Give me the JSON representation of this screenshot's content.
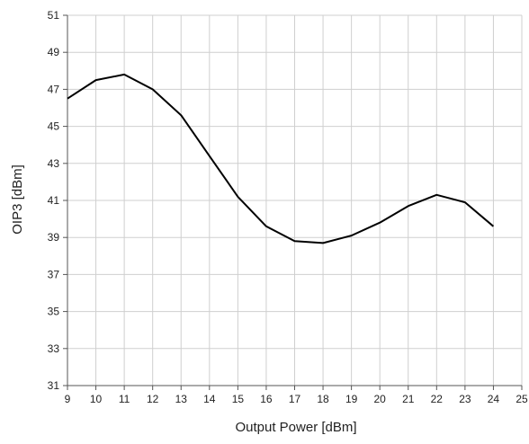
{
  "chart_data": {
    "type": "line",
    "xlabel": "Output Power [dBm]",
    "ylabel": "OIP3 [dBm]",
    "xlim": [
      9,
      25
    ],
    "ylim": [
      31,
      51
    ],
    "xticks": [
      "9",
      "10",
      "11",
      "12",
      "13",
      "14",
      "15",
      "16",
      "17",
      "18",
      "19",
      "20",
      "21",
      "22",
      "23",
      "24",
      "25"
    ],
    "yticks": [
      "31",
      "33",
      "35",
      "37",
      "39",
      "41",
      "43",
      "45",
      "47",
      "49",
      "51"
    ],
    "grid": true,
    "series": [
      {
        "x": [
          9,
          10,
          11,
          12,
          13,
          14,
          15,
          16,
          17,
          18,
          19,
          20,
          21,
          22,
          23,
          24
        ],
        "y": [
          46.5,
          47.5,
          47.8,
          47.0,
          45.6,
          43.4,
          41.2,
          39.6,
          38.8,
          38.7,
          39.1,
          39.8,
          40.7,
          41.3,
          40.9,
          39.6
        ],
        "color": "#000000"
      }
    ]
  }
}
